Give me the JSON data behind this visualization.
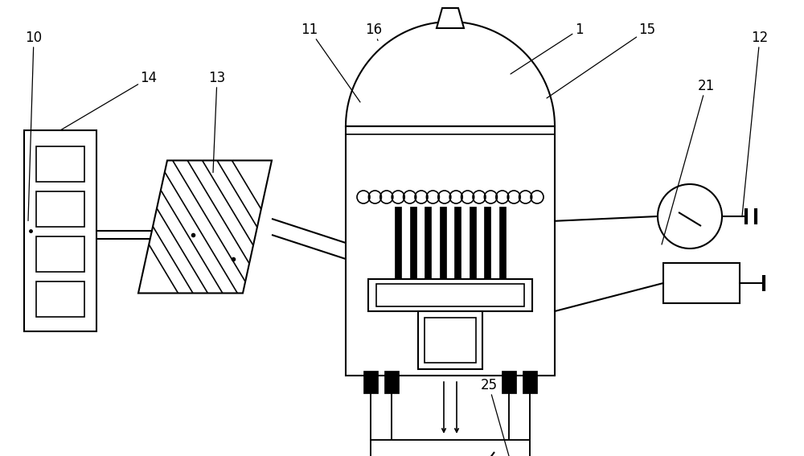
{
  "bg_color": "#ffffff",
  "line_color": "#000000",
  "line_width": 1.5,
  "fig_w": 10.0,
  "fig_h": 5.67,
  "dpi": 100
}
